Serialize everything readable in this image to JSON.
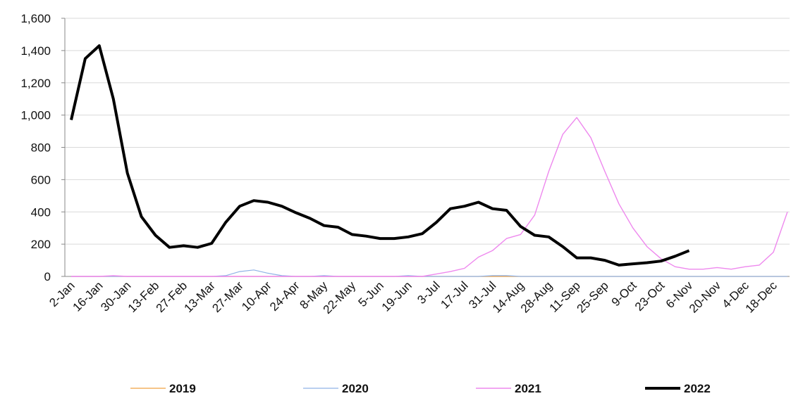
{
  "chart_data": {
    "type": "line",
    "categories": [
      "2-Jan",
      null,
      "16-Jan",
      null,
      "30-Jan",
      null,
      "13-Feb",
      null,
      "27-Feb",
      null,
      "13-Mar",
      null,
      "27-Mar",
      null,
      "10-Apr",
      null,
      "24-Apr",
      null,
      "8-May",
      null,
      "22-May",
      null,
      "5-Jun",
      null,
      "19-Jun",
      null,
      "3-Jul",
      null,
      "17-Jul",
      null,
      "31-Jul",
      null,
      "14-Aug",
      null,
      "28-Aug",
      null,
      "11-Sep",
      null,
      "25-Sep",
      null,
      "9-Oct",
      null,
      "23-Oct",
      null,
      "6-Nov",
      null,
      "20-Nov",
      null,
      "4-Dec",
      null,
      "18-Dec",
      null
    ],
    "series": [
      {
        "name": "2019",
        "color": "#f0a040",
        "values": [
          0,
          0,
          0,
          0,
          0,
          0,
          0,
          0,
          0,
          0,
          0,
          0,
          0,
          0,
          0,
          0,
          0,
          0,
          0,
          0,
          0,
          0,
          0,
          0,
          0,
          0,
          0,
          0,
          0,
          0,
          0,
          0,
          0,
          0,
          0,
          0,
          0,
          0,
          0,
          0,
          0,
          0,
          0,
          0,
          0,
          0,
          0,
          0,
          0,
          0,
          0,
          0
        ]
      },
      {
        "name": "2020",
        "color": "#8fb2e6",
        "values": [
          0,
          0,
          0,
          0,
          0,
          0,
          0,
          0,
          0,
          0,
          0,
          5,
          30,
          40,
          20,
          5,
          0,
          0,
          5,
          0,
          0,
          0,
          0,
          0,
          5,
          0,
          0,
          0,
          0,
          0,
          5,
          5,
          0,
          0,
          0,
          0,
          0,
          0,
          0,
          0,
          0,
          0,
          0,
          0,
          0,
          0,
          0,
          0,
          0,
          0,
          0,
          0
        ]
      },
      {
        "name": "2021",
        "color": "#ee88ee",
        "values": [
          0,
          0,
          0,
          5,
          0,
          0,
          0,
          0,
          0,
          0,
          0,
          0,
          0,
          0,
          0,
          0,
          0,
          0,
          0,
          0,
          0,
          0,
          0,
          0,
          0,
          0,
          15,
          30,
          50,
          120,
          160,
          235,
          260,
          380,
          650,
          880,
          985,
          860,
          650,
          450,
          300,
          185,
          110,
          60,
          45,
          45,
          55,
          45,
          60,
          70,
          150,
          400
        ]
      },
      {
        "name": "2022",
        "color": "#000000",
        "values": [
          970,
          1350,
          1430,
          1100,
          640,
          370,
          255,
          180,
          190,
          180,
          205,
          335,
          435,
          470,
          460,
          435,
          395,
          360,
          315,
          305,
          260,
          250,
          235,
          235,
          245,
          265,
          335,
          420,
          435,
          460,
          420,
          410,
          310,
          255,
          245,
          185,
          115,
          115,
          100,
          70,
          78,
          85,
          95,
          125,
          160,
          null,
          null,
          null,
          null,
          null,
          null,
          null
        ]
      }
    ],
    "ylim": [
      0,
      1600
    ],
    "yticks": [
      0,
      200,
      400,
      600,
      800,
      {
        "value": 1000,
        "label": "1,000"
      },
      {
        "value": 1200,
        "label": "1,200"
      },
      {
        "value": 1400,
        "label": "1,400"
      },
      {
        "value": 1600,
        "label": "1,600"
      }
    ],
    "grid": true
  }
}
